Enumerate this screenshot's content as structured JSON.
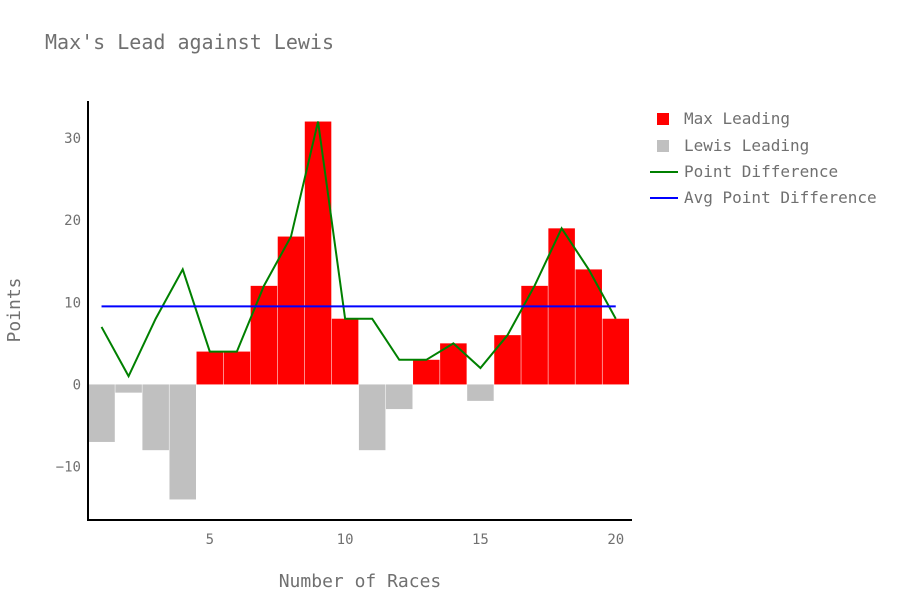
{
  "chart_data": {
    "type": "bar",
    "title": "Max's Lead against Lewis",
    "xlabel": "Number of Races",
    "ylabel": "Points",
    "xlim": [
      0.5,
      20.6
    ],
    "ylim": [
      -16.5,
      34.5
    ],
    "x_ticks": [
      5,
      10,
      15,
      20
    ],
    "y_ticks": [
      -10,
      0,
      10,
      20,
      30
    ],
    "grid": false,
    "legend_position": "top-right",
    "x": [
      1,
      2,
      3,
      4,
      5,
      6,
      7,
      8,
      9,
      10,
      11,
      12,
      13,
      14,
      15,
      16,
      17,
      18,
      19,
      20
    ],
    "series": [
      {
        "name": "Max Leading",
        "kind": "bar",
        "color": "#ff0000",
        "values": [
          null,
          null,
          null,
          null,
          4,
          4,
          12,
          18,
          32,
          8,
          null,
          null,
          3,
          5,
          null,
          6,
          12,
          19,
          14,
          8
        ]
      },
      {
        "name": "Lewis Leading",
        "kind": "bar",
        "color": "#c0c0c0",
        "values": [
          -7,
          -1,
          -8,
          -14,
          null,
          null,
          null,
          null,
          null,
          null,
          -8,
          -3,
          null,
          null,
          -2,
          null,
          null,
          null,
          null,
          null
        ]
      },
      {
        "name": "Point Difference",
        "kind": "line",
        "color": "#008000",
        "values": [
          7,
          1,
          8,
          14,
          4,
          4,
          12,
          18,
          32,
          8,
          8,
          3,
          3,
          5,
          2,
          6,
          12,
          19,
          14,
          8
        ]
      },
      {
        "name": "Avg Point Difference",
        "kind": "line",
        "color": "#0000ff",
        "values": [
          9.5,
          9.5,
          9.5,
          9.5,
          9.5,
          9.5,
          9.5,
          9.5,
          9.5,
          9.5,
          9.5,
          9.5,
          9.5,
          9.5,
          9.5,
          9.5,
          9.5,
          9.5,
          9.5,
          9.5
        ]
      }
    ]
  }
}
